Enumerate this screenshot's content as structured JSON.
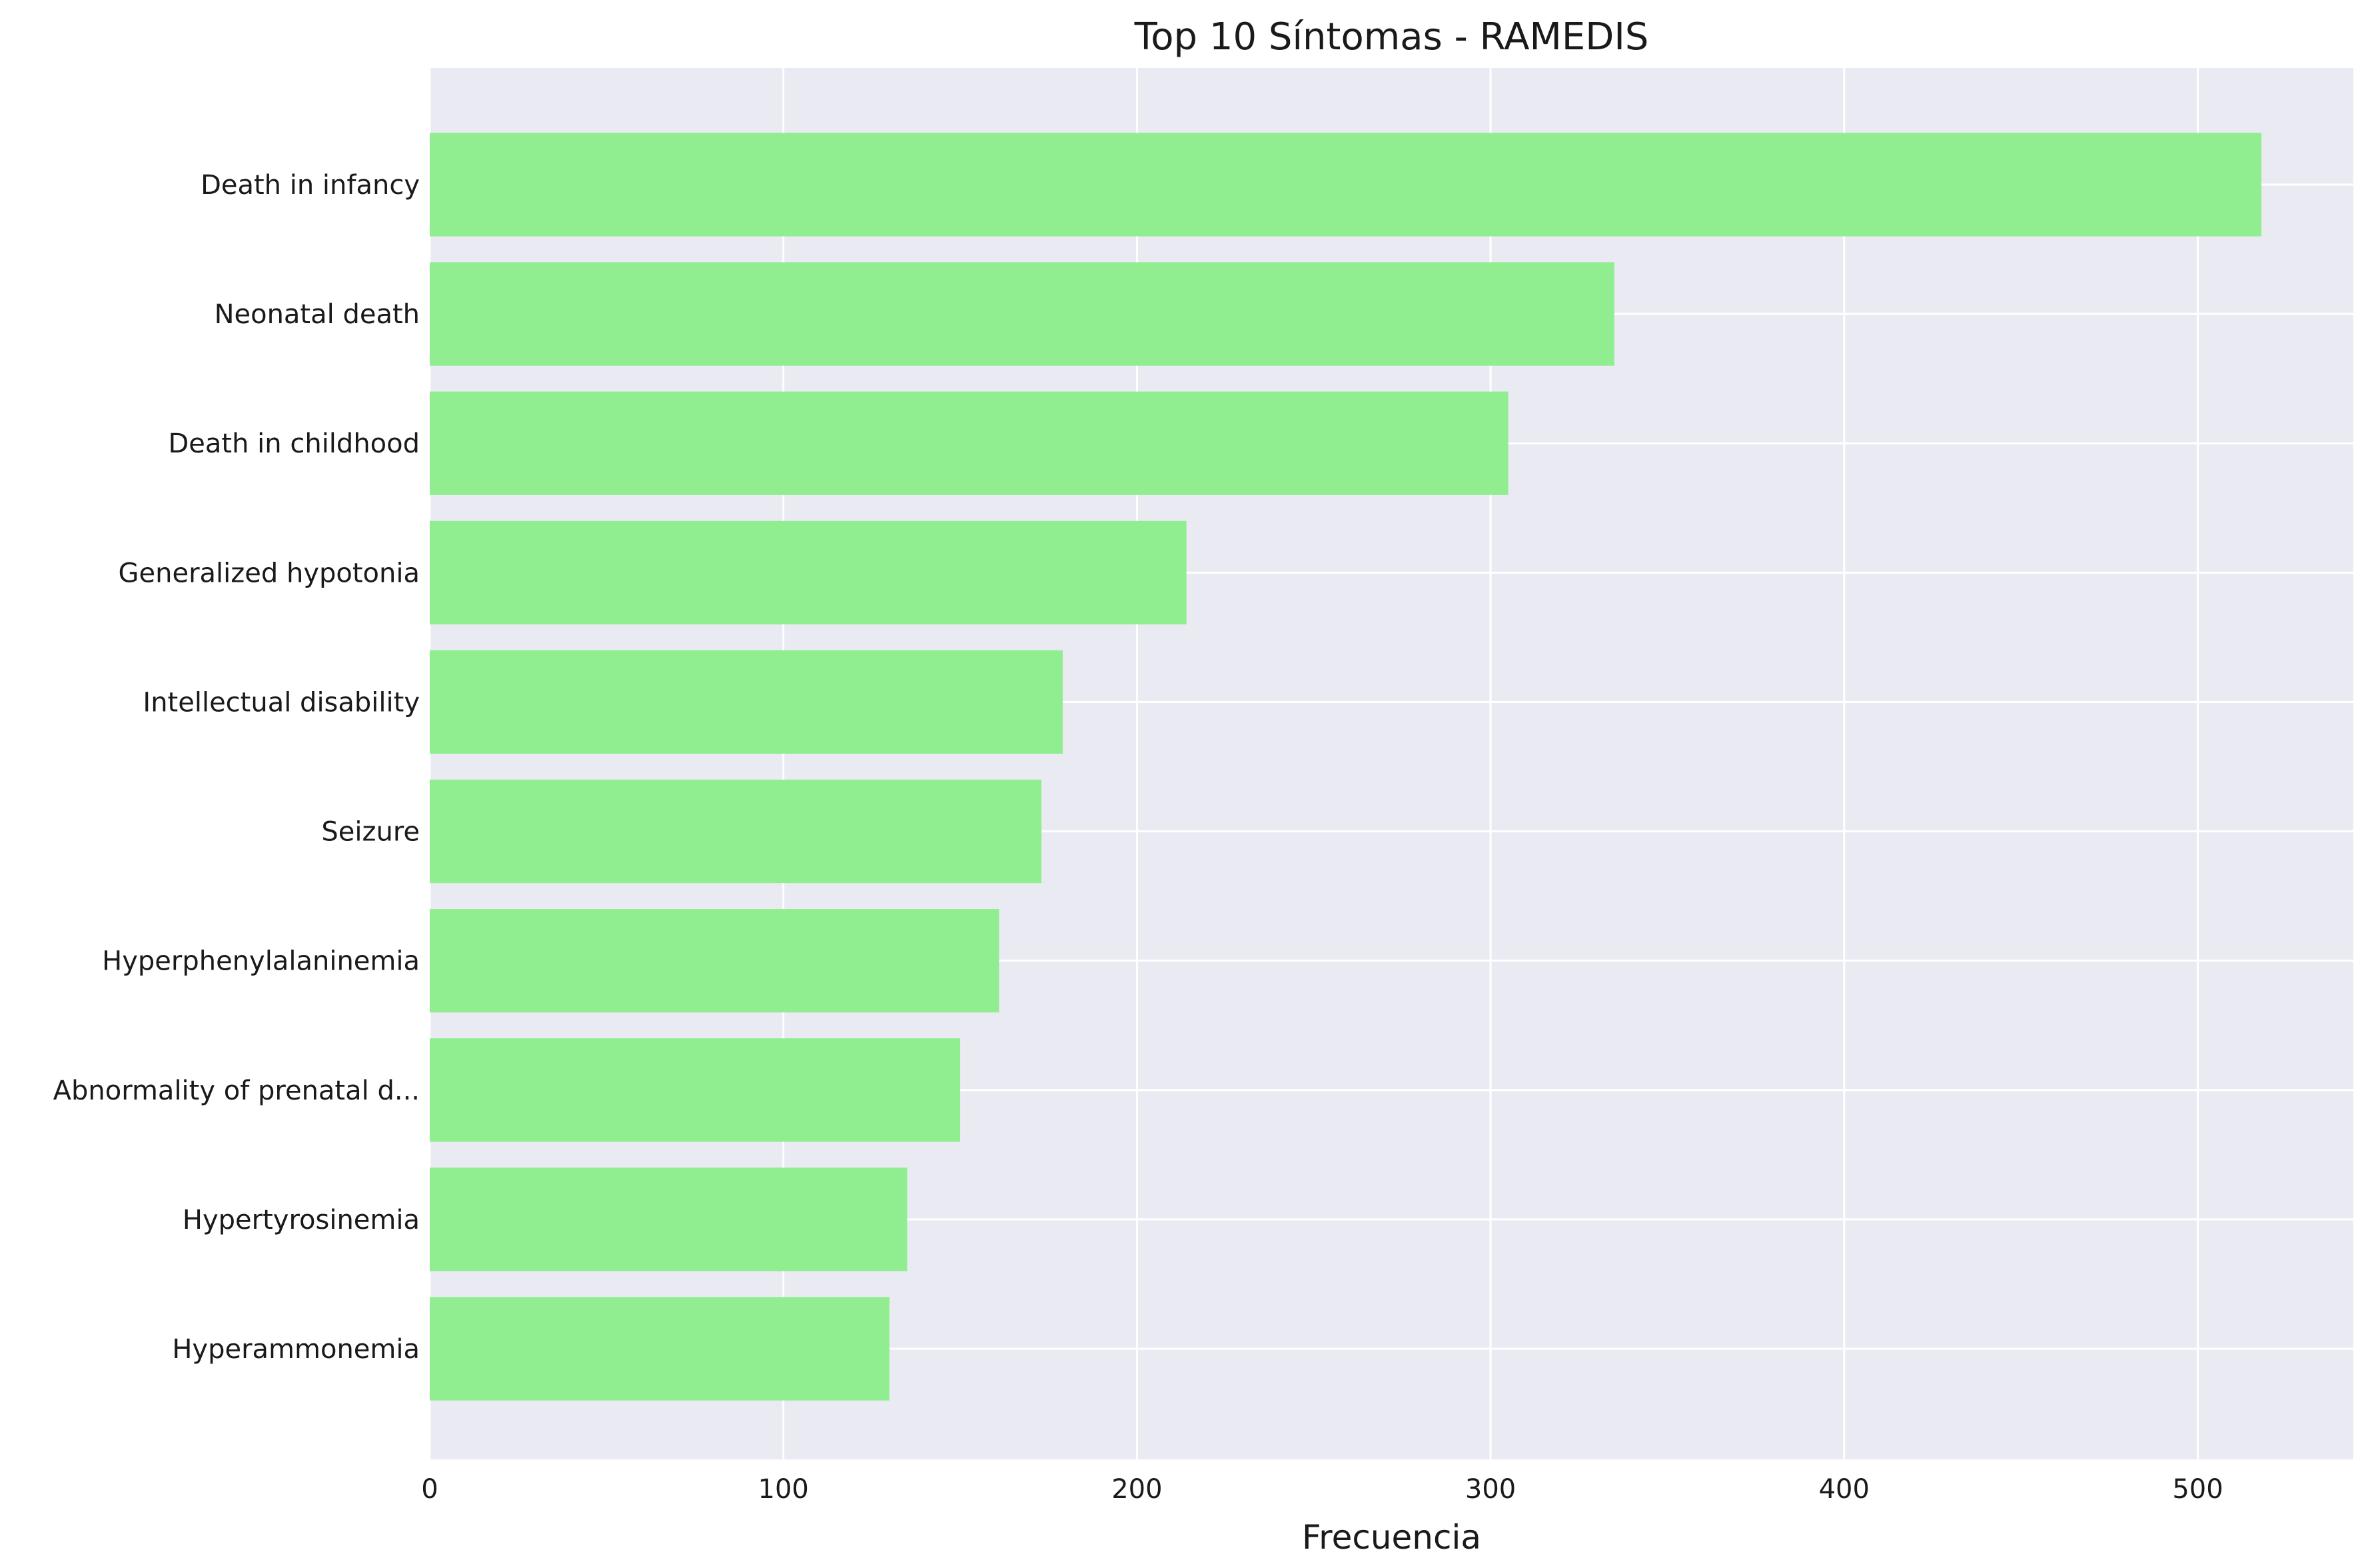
{
  "chart_data": {
    "type": "bar",
    "orientation": "horizontal",
    "title": "Top 10 Síntomas - RAMEDIS",
    "xlabel": "Frecuencia",
    "ylabel": "",
    "categories": [
      "Death in infancy",
      "Neonatal death",
      "Death in childhood",
      "Generalized hypotonia",
      "Intellectual disability",
      "Seizure",
      "Hyperphenylalaninemia",
      "Abnormality of prenatal d...",
      "Hypertyrosinemia",
      "Hyperammonemia"
    ],
    "values": [
      518,
      335,
      305,
      214,
      179,
      173,
      161,
      150,
      135,
      130
    ],
    "xlim": [
      0,
      544
    ],
    "xticks": [
      0,
      100,
      200,
      300,
      400,
      500
    ],
    "grid": true,
    "legend": "none",
    "bar_color": "#90ee90",
    "plot_background": "#eaeaf2",
    "grid_color": "#ffffff"
  }
}
